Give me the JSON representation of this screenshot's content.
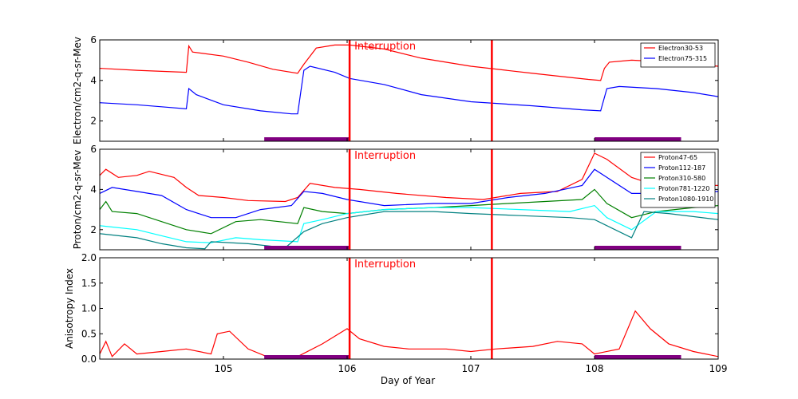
{
  "chart_data": [
    {
      "type": "line",
      "ylabel": "Electron/cm2-q-sr-Mev",
      "xlim": [
        104,
        109
      ],
      "ylim": [
        1,
        6
      ],
      "yticks": [
        2,
        4,
        6
      ],
      "legend_placement": "top-right",
      "annotation": "Interruption",
      "interruption_lines": [
        106.02,
        107.17
      ],
      "purple_bars": [
        [
          105.33,
          106.02
        ],
        [
          108.0,
          108.7
        ]
      ],
      "series": [
        {
          "name": "Electron30-53",
          "color": "#ff0000",
          "points": [
            [
              104.0,
              4.6
            ],
            [
              104.3,
              4.5
            ],
            [
              104.5,
              4.45
            ],
            [
              104.7,
              4.4
            ],
            [
              104.72,
              5.7
            ],
            [
              104.75,
              5.4
            ],
            [
              105.0,
              5.2
            ],
            [
              105.2,
              4.9
            ],
            [
              105.4,
              4.55
            ],
            [
              105.6,
              4.35
            ],
            [
              105.65,
              4.8
            ],
            [
              105.75,
              5.6
            ],
            [
              105.9,
              5.75
            ],
            [
              106.02,
              5.75
            ],
            [
              106.3,
              5.55
            ],
            [
              106.6,
              5.1
            ],
            [
              107.0,
              4.7
            ],
            [
              107.5,
              4.35
            ],
            [
              107.8,
              4.15
            ],
            [
              107.95,
              4.05
            ],
            [
              108.05,
              4.0
            ],
            [
              108.08,
              4.6
            ],
            [
              108.12,
              4.9
            ],
            [
              108.3,
              5.0
            ],
            [
              108.6,
              4.9
            ],
            [
              109.0,
              4.7
            ]
          ]
        },
        {
          "name": "Electron75-315",
          "color": "#0000ff",
          "points": [
            [
              104.0,
              2.9
            ],
            [
              104.3,
              2.8
            ],
            [
              104.5,
              2.7
            ],
            [
              104.7,
              2.6
            ],
            [
              104.72,
              3.6
            ],
            [
              104.78,
              3.3
            ],
            [
              105.0,
              2.8
            ],
            [
              105.3,
              2.5
            ],
            [
              105.55,
              2.35
            ],
            [
              105.6,
              2.35
            ],
            [
              105.65,
              4.5
            ],
            [
              105.7,
              4.7
            ],
            [
              105.9,
              4.4
            ],
            [
              106.02,
              4.1
            ],
            [
              106.3,
              3.8
            ],
            [
              106.6,
              3.3
            ],
            [
              107.0,
              2.95
            ],
            [
              107.5,
              2.75
            ],
            [
              107.9,
              2.55
            ],
            [
              108.05,
              2.5
            ],
            [
              108.1,
              3.6
            ],
            [
              108.2,
              3.7
            ],
            [
              108.5,
              3.6
            ],
            [
              108.8,
              3.4
            ],
            [
              109.0,
              3.2
            ]
          ]
        }
      ]
    },
    {
      "type": "line",
      "ylabel": "Proton/cm2-q-sr-Mev",
      "xlim": [
        104,
        109
      ],
      "ylim": [
        1,
        6
      ],
      "yticks": [
        2,
        4,
        6
      ],
      "legend_placement": "top-right",
      "annotation": "Interruption",
      "interruption_lines": [
        106.02,
        107.17
      ],
      "purple_bars": [
        [
          105.33,
          106.02
        ],
        [
          108.0,
          108.7
        ]
      ],
      "series": [
        {
          "name": "Proton47-65",
          "color": "#ff0000",
          "points": [
            [
              104.0,
              4.7
            ],
            [
              104.05,
              5.0
            ],
            [
              104.15,
              4.6
            ],
            [
              104.3,
              4.7
            ],
            [
              104.4,
              4.9
            ],
            [
              104.6,
              4.6
            ],
            [
              104.7,
              4.1
            ],
            [
              104.8,
              3.7
            ],
            [
              105.0,
              3.6
            ],
            [
              105.2,
              3.45
            ],
            [
              105.5,
              3.4
            ],
            [
              105.6,
              3.6
            ],
            [
              105.7,
              4.3
            ],
            [
              105.9,
              4.1
            ],
            [
              106.1,
              4.0
            ],
            [
              106.4,
              3.8
            ],
            [
              106.8,
              3.6
            ],
            [
              107.1,
              3.5
            ],
            [
              107.4,
              3.8
            ],
            [
              107.7,
              3.9
            ],
            [
              107.9,
              4.5
            ],
            [
              108.0,
              5.8
            ],
            [
              108.1,
              5.5
            ],
            [
              108.3,
              4.6
            ],
            [
              108.5,
              4.2
            ],
            [
              108.8,
              4.2
            ],
            [
              109.0,
              4.2
            ]
          ]
        },
        {
          "name": "Proton112-187",
          "color": "#0000ff",
          "points": [
            [
              104.0,
              3.8
            ],
            [
              104.1,
              4.1
            ],
            [
              104.3,
              3.9
            ],
            [
              104.5,
              3.7
            ],
            [
              104.7,
              3.0
            ],
            [
              104.9,
              2.6
            ],
            [
              105.1,
              2.6
            ],
            [
              105.3,
              3.0
            ],
            [
              105.55,
              3.2
            ],
            [
              105.65,
              3.9
            ],
            [
              105.8,
              3.8
            ],
            [
              106.0,
              3.5
            ],
            [
              106.3,
              3.2
            ],
            [
              106.7,
              3.3
            ],
            [
              107.0,
              3.3
            ],
            [
              107.3,
              3.6
            ],
            [
              107.6,
              3.8
            ],
            [
              107.9,
              4.2
            ],
            [
              108.0,
              5.0
            ],
            [
              108.1,
              4.6
            ],
            [
              108.3,
              3.8
            ],
            [
              108.6,
              3.8
            ],
            [
              109.0,
              3.9
            ]
          ]
        },
        {
          "name": "Proton310-580",
          "color": "#008000",
          "points": [
            [
              104.0,
              3.0
            ],
            [
              104.05,
              3.4
            ],
            [
              104.1,
              2.9
            ],
            [
              104.3,
              2.8
            ],
            [
              104.5,
              2.4
            ],
            [
              104.7,
              2.0
            ],
            [
              104.9,
              1.8
            ],
            [
              105.1,
              2.4
            ],
            [
              105.3,
              2.5
            ],
            [
              105.6,
              2.3
            ],
            [
              105.65,
              3.1
            ],
            [
              105.8,
              2.9
            ],
            [
              106.0,
              2.8
            ],
            [
              106.3,
              3.0
            ],
            [
              106.7,
              3.1
            ],
            [
              107.0,
              3.2
            ],
            [
              107.3,
              3.3
            ],
            [
              107.6,
              3.4
            ],
            [
              107.9,
              3.5
            ],
            [
              108.0,
              4.0
            ],
            [
              108.1,
              3.3
            ],
            [
              108.3,
              2.6
            ],
            [
              108.5,
              2.9
            ],
            [
              108.8,
              3.1
            ],
            [
              109.0,
              3.2
            ]
          ]
        },
        {
          "name": "Proton781-1220",
          "color": "#00ffff",
          "points": [
            [
              104.0,
              2.2
            ],
            [
              104.3,
              2.0
            ],
            [
              104.5,
              1.7
            ],
            [
              104.7,
              1.4
            ],
            [
              104.9,
              1.35
            ],
            [
              105.1,
              1.6
            ],
            [
              105.3,
              1.5
            ],
            [
              105.6,
              1.4
            ],
            [
              105.65,
              2.3
            ],
            [
              105.8,
              2.5
            ],
            [
              106.0,
              2.8
            ],
            [
              106.3,
              3.0
            ],
            [
              106.7,
              3.1
            ],
            [
              107.0,
              3.1
            ],
            [
              107.4,
              3.0
            ],
            [
              107.8,
              2.9
            ],
            [
              108.0,
              3.2
            ],
            [
              108.1,
              2.6
            ],
            [
              108.3,
              2.0
            ],
            [
              108.5,
              2.9
            ],
            [
              108.8,
              2.9
            ],
            [
              109.0,
              2.8
            ]
          ]
        },
        {
          "name": "Proton1080-1910",
          "color": "#008080",
          "points": [
            [
              104.0,
              1.8
            ],
            [
              104.3,
              1.6
            ],
            [
              104.5,
              1.3
            ],
            [
              104.7,
              1.1
            ],
            [
              104.85,
              1.05
            ],
            [
              104.9,
              1.4
            ],
            [
              105.2,
              1.3
            ],
            [
              105.5,
              1.1
            ],
            [
              105.65,
              1.9
            ],
            [
              105.8,
              2.3
            ],
            [
              106.0,
              2.6
            ],
            [
              106.3,
              2.9
            ],
            [
              106.7,
              2.9
            ],
            [
              107.0,
              2.8
            ],
            [
              107.4,
              2.7
            ],
            [
              107.8,
              2.6
            ],
            [
              108.0,
              2.5
            ],
            [
              108.1,
              2.2
            ],
            [
              108.3,
              1.6
            ],
            [
              108.4,
              2.9
            ],
            [
              108.6,
              2.8
            ],
            [
              109.0,
              2.5
            ]
          ]
        }
      ]
    },
    {
      "type": "line",
      "ylabel": "Anisotropy Index",
      "xlabel": "Day of Year",
      "xlim": [
        104,
        109
      ],
      "ylim": [
        0,
        2
      ],
      "yticks": [
        0.0,
        0.5,
        1.0,
        1.5,
        2.0
      ],
      "ytick_labels": [
        "0.0",
        "0.5",
        "1.0",
        "1.5",
        "2.0"
      ],
      "xticks": [
        105,
        106,
        107,
        108,
        109
      ],
      "xtick_labels": [
        "105",
        "106",
        "107",
        "108",
        "109"
      ],
      "annotation": "Interruption",
      "interruption_lines": [
        106.02,
        107.17
      ],
      "purple_bars": [
        [
          105.33,
          106.02
        ],
        [
          108.0,
          108.7
        ]
      ],
      "series": [
        {
          "name": "",
          "color": "#ff0000",
          "points": [
            [
              104.0,
              0.1
            ],
            [
              104.05,
              0.35
            ],
            [
              104.1,
              0.05
            ],
            [
              104.2,
              0.3
            ],
            [
              104.3,
              0.1
            ],
            [
              104.5,
              0.15
            ],
            [
              104.7,
              0.2
            ],
            [
              104.9,
              0.1
            ],
            [
              104.95,
              0.5
            ],
            [
              105.05,
              0.55
            ],
            [
              105.2,
              0.2
            ],
            [
              105.35,
              0.05
            ],
            [
              105.6,
              0.05
            ],
            [
              105.8,
              0.3
            ],
            [
              106.0,
              0.6
            ],
            [
              106.1,
              0.4
            ],
            [
              106.3,
              0.25
            ],
            [
              106.5,
              0.2
            ],
            [
              106.8,
              0.2
            ],
            [
              107.0,
              0.15
            ],
            [
              107.2,
              0.2
            ],
            [
              107.5,
              0.25
            ],
            [
              107.7,
              0.35
            ],
            [
              107.9,
              0.3
            ],
            [
              108.0,
              0.1
            ],
            [
              108.2,
              0.2
            ],
            [
              108.33,
              0.95
            ],
            [
              108.45,
              0.6
            ],
            [
              108.6,
              0.3
            ],
            [
              108.8,
              0.15
            ],
            [
              109.0,
              0.05
            ]
          ]
        }
      ]
    }
  ]
}
